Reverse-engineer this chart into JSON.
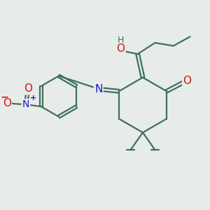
{
  "bg_color": "#e8ece8",
  "bond_color": "#3d7060",
  "bond_width": 1.6,
  "atom_colors": {
    "N": "#1a1acc",
    "O": "#cc1a1a",
    "H": "#3d7060"
  },
  "font_size": 9
}
